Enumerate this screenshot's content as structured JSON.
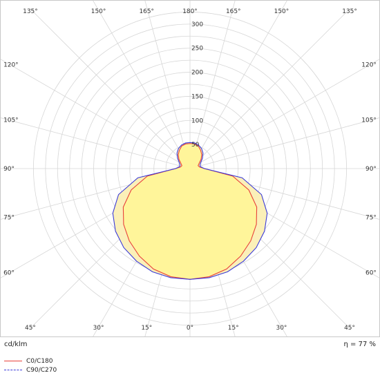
{
  "chart_data": {
    "type": "polar",
    "unit_label": "cd/klm",
    "efficiency_label": "η = 77 %",
    "radial_ticks": [
      50,
      100,
      150,
      200,
      250,
      300
    ],
    "radial_max": 300,
    "angle_labels_top": [
      "135°",
      "150°",
      "165°",
      "180°",
      "165°",
      "150°",
      "135°"
    ],
    "angle_labels_bottom": [
      "45°",
      "30°",
      "15°",
      "0°",
      "15°",
      "30°",
      "45°"
    ],
    "angle_labels_side": [
      "120°",
      "105°",
      "90°",
      "75°",
      "60°"
    ],
    "series": [
      {
        "name": "C0/C180",
        "color": "#e8403a",
        "style": "solid",
        "angles": [
          0,
          10,
          20,
          30,
          40,
          50,
          60,
          70,
          80,
          90,
          100,
          110,
          120,
          130,
          140,
          150,
          160,
          170,
          180
        ],
        "values": [
          230,
          228,
          222,
          210,
          196,
          180,
          160,
          130,
          90,
          30,
          20,
          18,
          22,
          30,
          38,
          44,
          50,
          52,
          52
        ]
      },
      {
        "name": "C90/C270",
        "color": "#3a3ad8",
        "style": "dashed",
        "angles": [
          0,
          10,
          20,
          30,
          40,
          50,
          60,
          70,
          80,
          90,
          100,
          110,
          120,
          130,
          140,
          150,
          160,
          170,
          180
        ],
        "values": [
          230,
          230,
          228,
          222,
          214,
          202,
          185,
          158,
          110,
          30,
          22,
          22,
          26,
          34,
          42,
          48,
          52,
          54,
          54
        ]
      }
    ]
  }
}
